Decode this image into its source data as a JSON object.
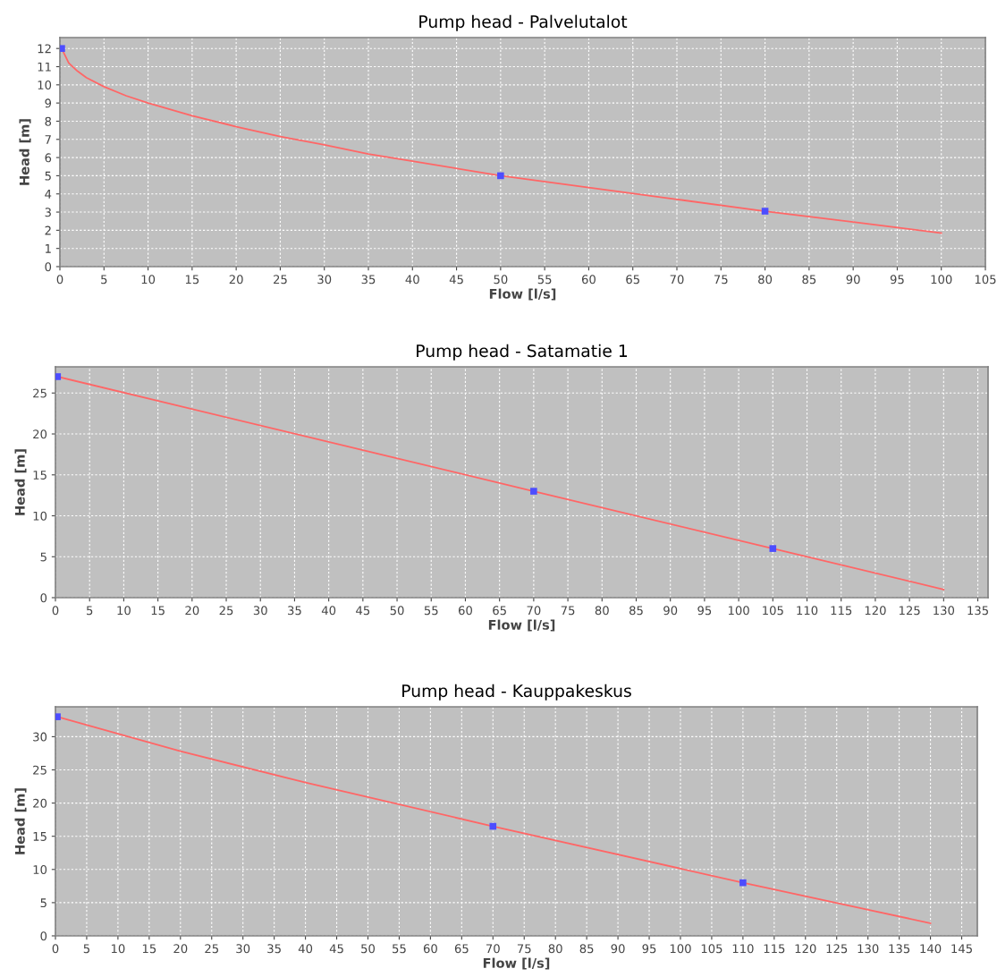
{
  "chart_data": [
    {
      "type": "line",
      "title": "Pump head - Palvelutalot",
      "xlabel": "Flow [l/s]",
      "ylabel": "Head [m]",
      "xlim": [
        0,
        105
      ],
      "ylim": [
        0,
        12.6
      ],
      "xticks": [
        0,
        5,
        10,
        15,
        20,
        25,
        30,
        35,
        40,
        45,
        50,
        55,
        60,
        65,
        70,
        75,
        80,
        85,
        90,
        95,
        100,
        105
      ],
      "yticks": [
        0,
        1,
        2,
        3,
        4,
        5,
        6,
        7,
        8,
        9,
        10,
        11,
        12
      ],
      "grid": true,
      "legend": false,
      "series": [
        {
          "type": "line",
          "color": "#ff6666",
          "marker": "none",
          "x": [
            0.2,
            1,
            2,
            3,
            5,
            7.5,
            10,
            15,
            20,
            25,
            30,
            35,
            40,
            50,
            60,
            70,
            80,
            90,
            100
          ],
          "values": [
            12,
            11.2,
            10.75,
            10.4,
            9.9,
            9.4,
            9.0,
            8.3,
            7.7,
            7.15,
            6.7,
            6.2,
            5.8,
            5.0,
            4.35,
            3.7,
            3.05,
            2.45,
            1.85
          ]
        },
        {
          "type": "scatter",
          "color": "#4d4dff",
          "marker": "square",
          "x": [
            0.2,
            50,
            80
          ],
          "values": [
            12,
            5,
            3.05
          ]
        }
      ]
    },
    {
      "type": "line",
      "title": "Pump head - Satamatie 1",
      "xlabel": "Flow [l/s]",
      "ylabel": "Head [m]",
      "xlim": [
        0,
        136.5
      ],
      "ylim": [
        0,
        28.2
      ],
      "xticks": [
        0,
        5,
        10,
        15,
        20,
        25,
        30,
        35,
        40,
        45,
        50,
        55,
        60,
        65,
        70,
        75,
        80,
        85,
        90,
        95,
        100,
        105,
        110,
        115,
        120,
        125,
        130,
        135
      ],
      "yticks": [
        0,
        5,
        10,
        15,
        20,
        25
      ],
      "grid": true,
      "legend": false,
      "series": [
        {
          "type": "line",
          "color": "#ff6666",
          "marker": "none",
          "x": [
            0.3,
            70,
            105,
            130
          ],
          "values": [
            27,
            13,
            6,
            1
          ]
        },
        {
          "type": "scatter",
          "color": "#4d4dff",
          "marker": "square",
          "x": [
            0.3,
            70,
            105
          ],
          "values": [
            27,
            13,
            6
          ]
        }
      ]
    },
    {
      "type": "line",
      "title": "Pump head - Kauppakeskus",
      "xlabel": "Flow [l/s]",
      "ylabel": "Head [m]",
      "xlim": [
        0,
        147.5
      ],
      "ylim": [
        0,
        34.5
      ],
      "xticks": [
        0,
        5,
        10,
        15,
        20,
        25,
        30,
        35,
        40,
        45,
        50,
        55,
        60,
        65,
        70,
        75,
        80,
        85,
        90,
        95,
        100,
        105,
        110,
        115,
        120,
        125,
        130,
        135,
        140,
        145
      ],
      "yticks": [
        0,
        5,
        10,
        15,
        20,
        25,
        30
      ],
      "grid": true,
      "legend": false,
      "series": [
        {
          "type": "line",
          "color": "#ff6666",
          "marker": "none",
          "x": [
            0.3,
            20,
            40,
            70,
            110,
            140
          ],
          "values": [
            33,
            27.8,
            23.1,
            16.5,
            8,
            1.9
          ]
        },
        {
          "type": "scatter",
          "color": "#4d4dff",
          "marker": "square",
          "x": [
            0.3,
            70,
            110
          ],
          "values": [
            33,
            16.5,
            8
          ]
        }
      ]
    }
  ]
}
